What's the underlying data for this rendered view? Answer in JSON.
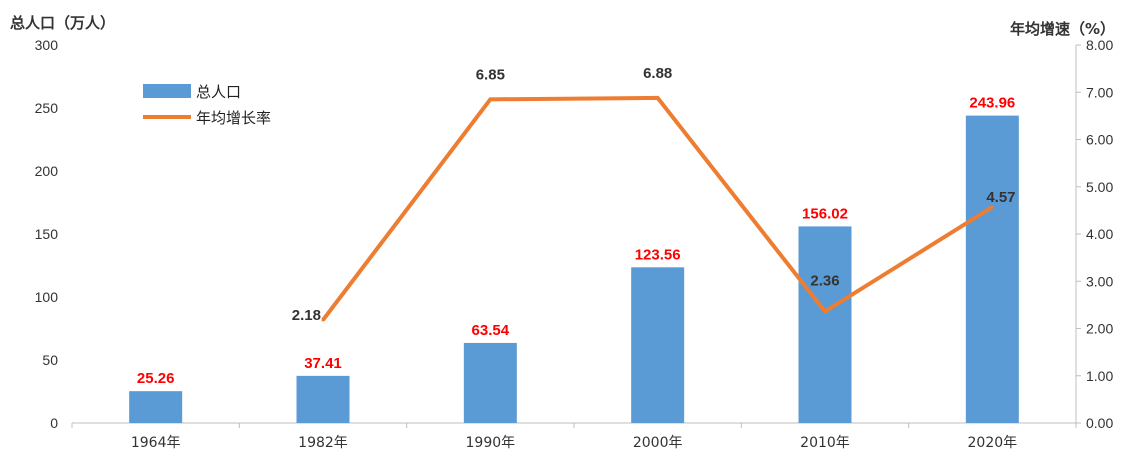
{
  "chart_data": {
    "type": "bar",
    "categories": [
      "1964年",
      "1982年",
      "1990年",
      "2000年",
      "2010年",
      "2020年"
    ],
    "series": [
      {
        "name": "总人口",
        "type": "bar",
        "axis": "left",
        "color": "#5B9BD5",
        "label_color": "#FF0000",
        "values": [
          25.26,
          37.41,
          63.54,
          123.56,
          156.02,
          243.96
        ],
        "labels": [
          "25.26",
          "37.41",
          "63.54",
          "123.56",
          "156.02",
          "243.96"
        ]
      },
      {
        "name": "年均增长率",
        "type": "line",
        "axis": "right",
        "color": "#ED7D31",
        "label_color": "#333333",
        "values": [
          null,
          2.18,
          6.85,
          6.88,
          2.36,
          4.57
        ],
        "labels": [
          "",
          "2.18",
          "6.85",
          "6.88",
          "2.36",
          "4.57"
        ]
      }
    ],
    "ylabel_left": "总人口（万人）",
    "ylabel_right": "年均增速（%）",
    "ylim_left": [
      0,
      300
    ],
    "yticks_left": [
      "0",
      "50",
      "100",
      "150",
      "200",
      "250",
      "300"
    ],
    "ylim_right": [
      0,
      8
    ],
    "yticks_right": [
      "0.00",
      "1.00",
      "2.00",
      "3.00",
      "4.00",
      "5.00",
      "6.00",
      "7.00",
      "8.00"
    ],
    "grid": false,
    "legend_position": "top-left"
  }
}
